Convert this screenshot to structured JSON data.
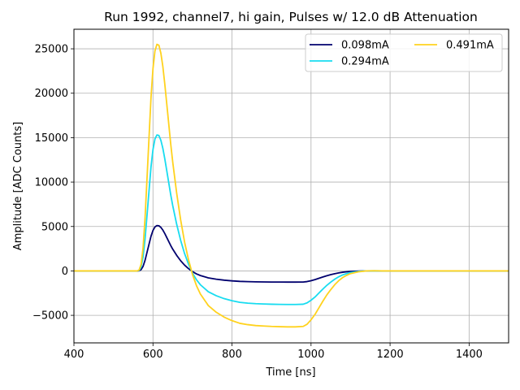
{
  "chart_data": {
    "type": "line",
    "title": "Run 1992, channel7, hi gain, Pulses w/ 12.0 dB Attenuation",
    "xlabel": "Time [ns]",
    "ylabel": "Amplitude [ADC Counts]",
    "xlim": [
      400,
      1500
    ],
    "ylim": [
      -8100,
      27200
    ],
    "xticks": [
      400,
      600,
      800,
      1000,
      1200,
      1400
    ],
    "xtick_labels": [
      "400",
      "600",
      "800",
      "1000",
      "1200",
      "1400"
    ],
    "yticks": [
      -5000,
      0,
      5000,
      10000,
      15000,
      20000,
      25000
    ],
    "ytick_labels": [
      "−5000",
      "0",
      "5000",
      "10000",
      "15000",
      "20000",
      "25000"
    ],
    "grid": true,
    "legend_position": "top-right",
    "x": [
      400,
      560,
      565,
      570,
      575,
      580,
      585,
      590,
      595,
      600,
      605,
      610,
      615,
      620,
      625,
      630,
      635,
      640,
      645,
      650,
      660,
      670,
      680,
      690,
      700,
      710,
      720,
      740,
      760,
      780,
      800,
      820,
      840,
      860,
      880,
      900,
      920,
      940,
      960,
      980,
      990,
      1000,
      1010,
      1020,
      1030,
      1040,
      1050,
      1060,
      1070,
      1080,
      1090,
      1100,
      1120,
      1140,
      1160,
      1180,
      1200,
      1250,
      1300,
      1400,
      1500
    ],
    "series": [
      {
        "name": "0.098mA",
        "color": "#00006e",
        "values": [
          0,
          0,
          20,
          150,
          520,
          1200,
          2100,
          3000,
          3900,
          4550,
          4950,
          5100,
          5080,
          4900,
          4600,
          4200,
          3750,
          3300,
          2850,
          2450,
          1750,
          1150,
          650,
          250,
          -80,
          -330,
          -520,
          -780,
          -930,
          -1040,
          -1120,
          -1180,
          -1210,
          -1230,
          -1240,
          -1250,
          -1255,
          -1260,
          -1260,
          -1250,
          -1200,
          -1100,
          -980,
          -830,
          -680,
          -540,
          -420,
          -310,
          -220,
          -150,
          -100,
          -60,
          -20,
          0,
          5,
          0,
          0,
          0,
          0,
          0,
          0
        ]
      },
      {
        "name": "0.294mA",
        "color": "#18dcf0",
        "values": [
          0,
          0,
          60,
          450,
          1560,
          3600,
          6300,
          9000,
          11700,
          13650,
          14850,
          15300,
          15240,
          14700,
          13800,
          12600,
          11250,
          9900,
          8550,
          7350,
          5250,
          3450,
          1950,
          750,
          -240,
          -990,
          -1560,
          -2340,
          -2790,
          -3120,
          -3360,
          -3540,
          -3630,
          -3690,
          -3720,
          -3750,
          -3765,
          -3780,
          -3780,
          -3750,
          -3600,
          -3300,
          -2940,
          -2490,
          -2040,
          -1620,
          -1260,
          -930,
          -660,
          -450,
          -300,
          -180,
          -60,
          0,
          10,
          0,
          0,
          0,
          0,
          0,
          0
        ]
      },
      {
        "name": "0.491mA",
        "color": "#ffd21e",
        "values": [
          0,
          0,
          100,
          750,
          2600,
          6000,
          10500,
          15000,
          19500,
          22750,
          24750,
          25500,
          25400,
          24500,
          23000,
          21000,
          18750,
          16500,
          14250,
          12250,
          8750,
          5750,
          3250,
          1250,
          -400,
          -1650,
          -2600,
          -3900,
          -4650,
          -5200,
          -5600,
          -5900,
          -6050,
          -6150,
          -6200,
          -6250,
          -6275,
          -6300,
          -6300,
          -6250,
          -6000,
          -5500,
          -4900,
          -4150,
          -3400,
          -2700,
          -2100,
          -1550,
          -1100,
          -750,
          -500,
          -300,
          -100,
          0,
          15,
          0,
          0,
          0,
          0,
          0,
          0
        ]
      }
    ]
  }
}
